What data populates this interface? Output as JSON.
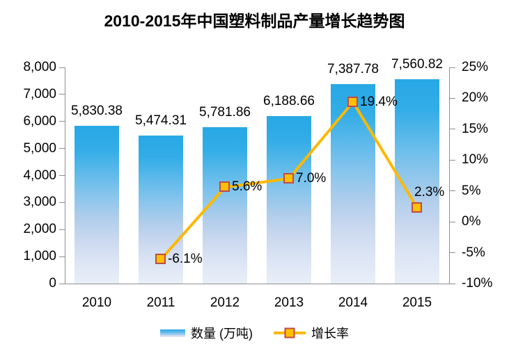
{
  "title": "2010-2015年中国塑料制品产量增长趋势图",
  "colors": {
    "bar_gradient_top": "#27A8E5",
    "bar_gradient_bottom": "#E9EFF9",
    "line": "#FBB900",
    "marker_fill": "#FFC000",
    "marker_border": "#BE4B48",
    "axis": "#8E8E8E",
    "text": "#000000"
  },
  "chart_data": {
    "type": "bar",
    "subtype": "bar+line combo, dual axis",
    "title": "2010-2015年中国塑料制品产量增长趋势图",
    "categories": [
      "2010",
      "2011",
      "2012",
      "2013",
      "2014",
      "2015"
    ],
    "series": [
      {
        "name": "数量 (万吨)",
        "type": "bar",
        "axis": "left",
        "values": [
          5830.38,
          5474.31,
          5781.86,
          6188.66,
          7387.78,
          7560.82
        ],
        "labels": [
          "5,830.38",
          "5,474.31",
          "5,781.86",
          "6,188.66",
          "7,387.78",
          "7,560.82"
        ]
      },
      {
        "name": "增长率",
        "type": "line",
        "axis": "right",
        "values": [
          null,
          -6.1,
          5.6,
          7.0,
          19.4,
          2.3
        ],
        "labels": [
          null,
          "-6.1%",
          "5.6%",
          "7.0%",
          "19.4%",
          "2.3%"
        ]
      }
    ],
    "left_axis": {
      "min": 0,
      "max": 8000,
      "step": 1000,
      "ticks": [
        "8,000",
        "7,000",
        "6,000",
        "5,000",
        "4,000",
        "3,000",
        "2,000",
        "1,000",
        "0"
      ]
    },
    "right_axis": {
      "min": -10,
      "max": 25,
      "step": 5,
      "ticks": [
        "25%",
        "20%",
        "15%",
        "10%",
        "5%",
        "0%",
        "-5%",
        "-10%"
      ]
    },
    "grid": false,
    "legend_position": "bottom",
    "legend": [
      "数量 (万吨)",
      "增长率"
    ]
  }
}
